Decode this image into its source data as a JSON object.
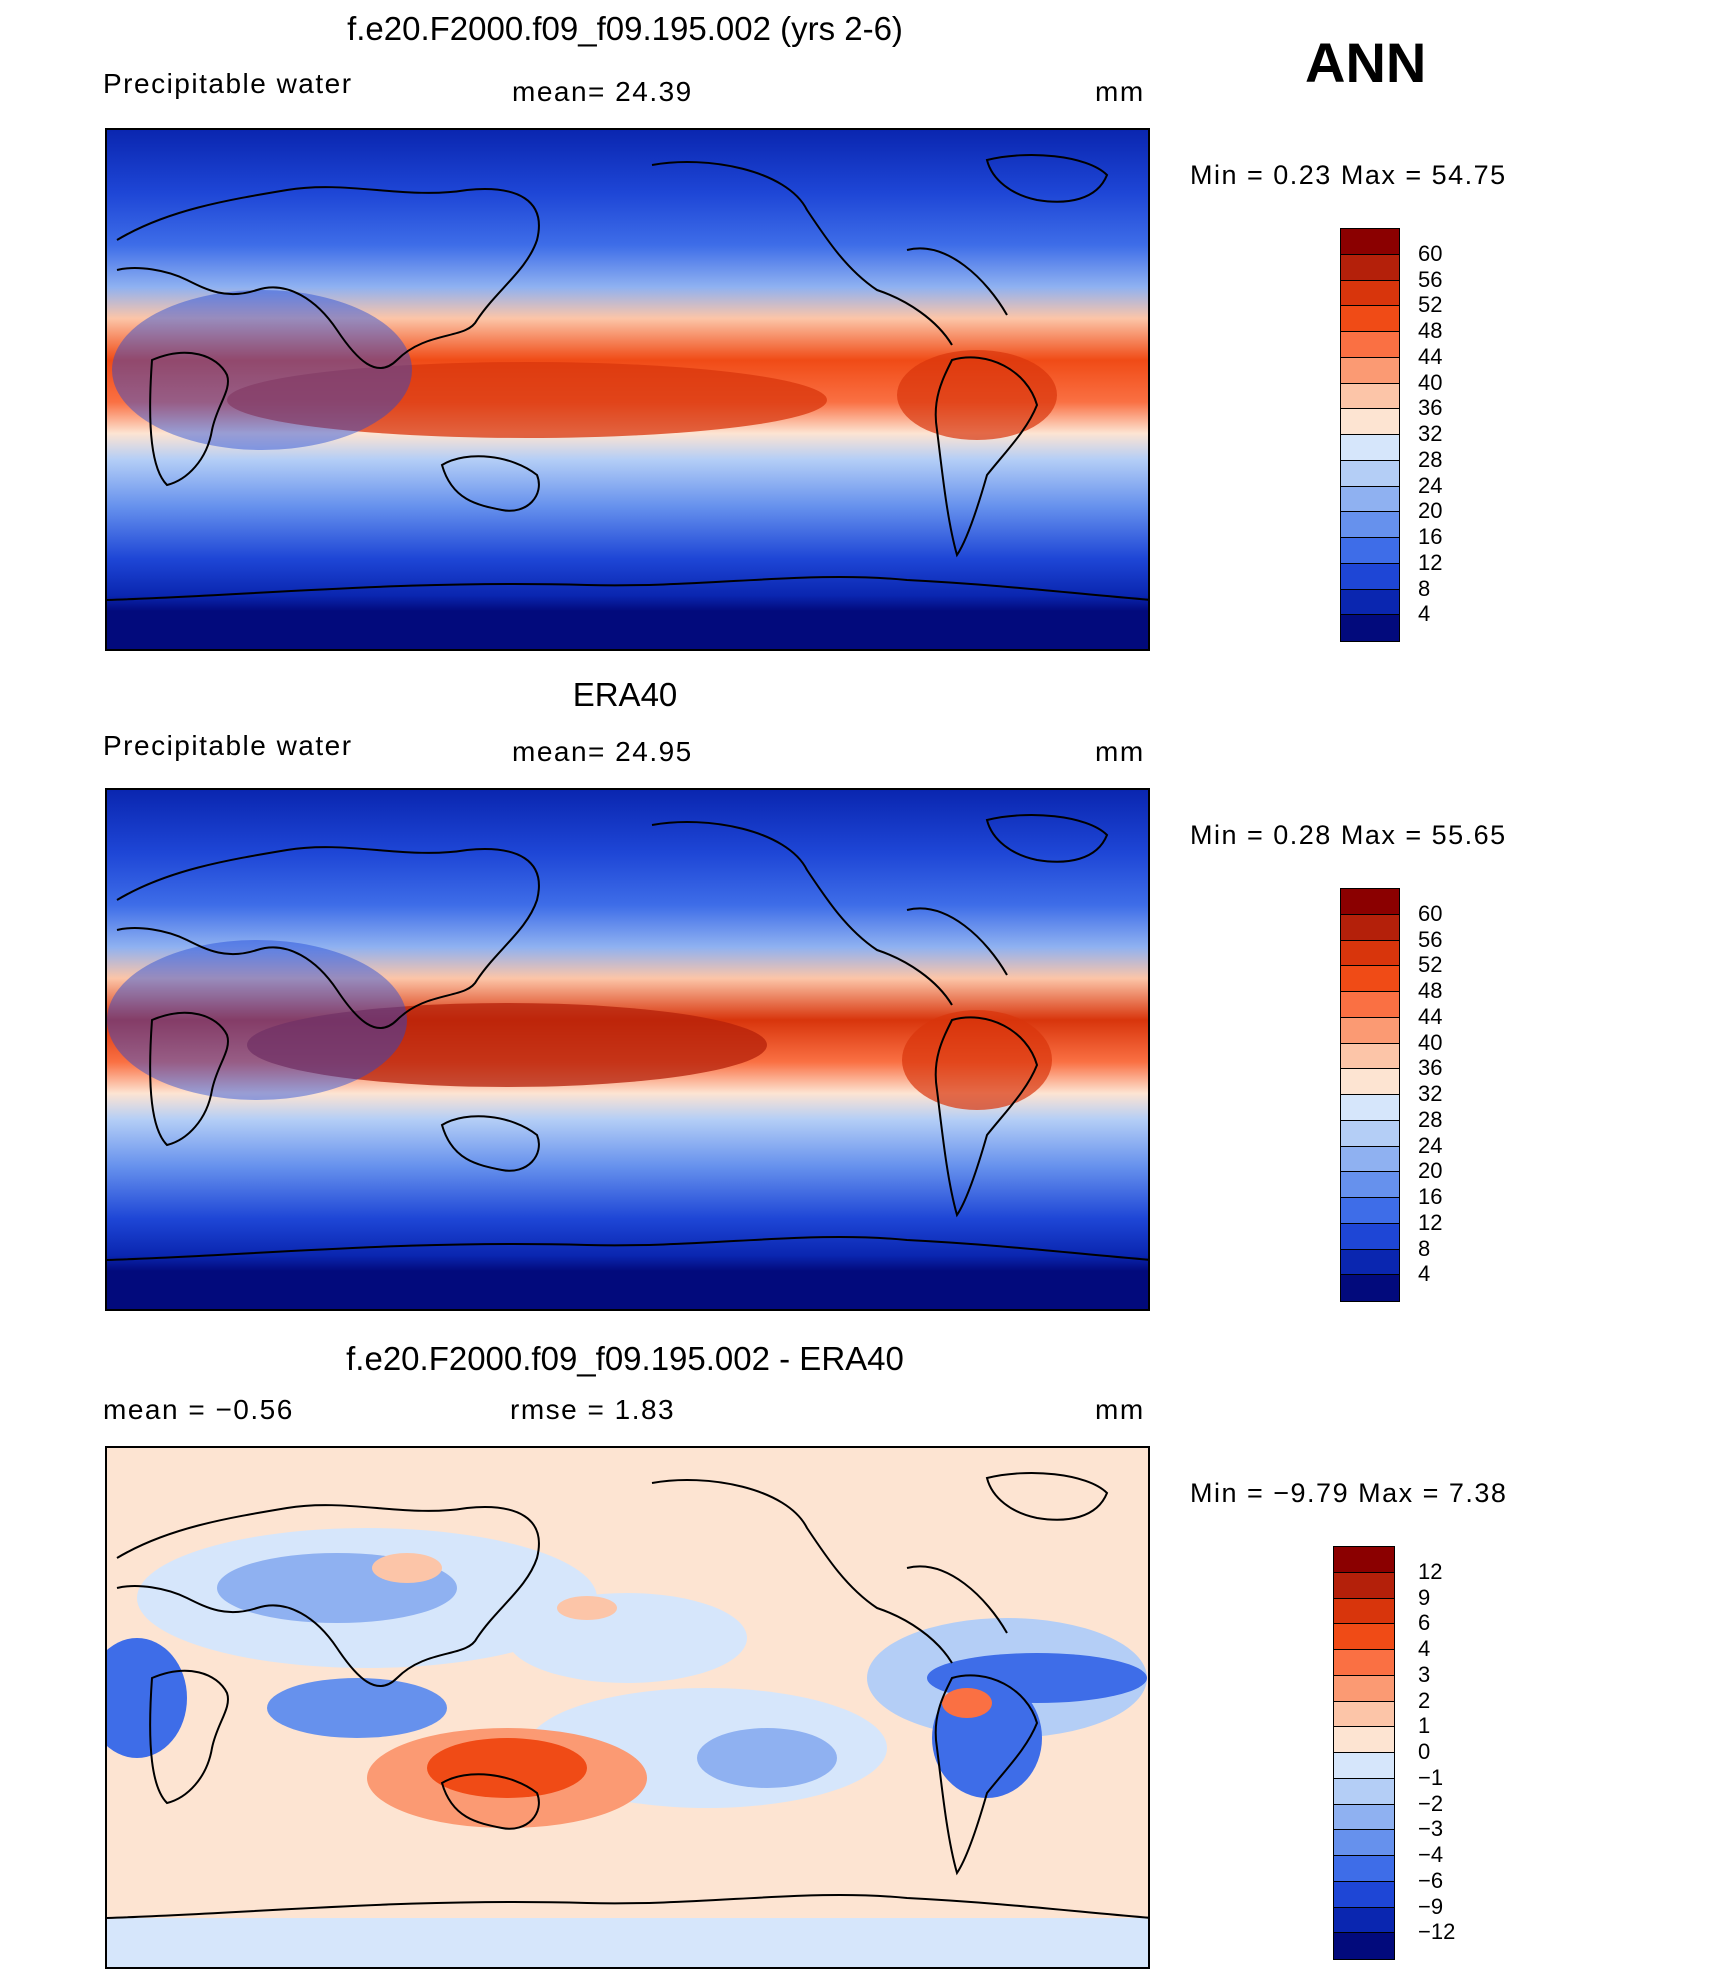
{
  "annual_label": "ANN",
  "panels": [
    {
      "title": "f.e20.F2000.f09_f09.195.002 (yrs 2-6)",
      "left_label": "Precipitable  water",
      "center_label": "mean=   24.39",
      "units": "mm",
      "minmax": "Min  =     0.23  Max  =     54.75",
      "colorbar": {
        "labels": [
          "60",
          "56",
          "52",
          "48",
          "44",
          "40",
          "36",
          "32",
          "28",
          "24",
          "20",
          "16",
          "12",
          "8",
          "4"
        ],
        "colors": [
          "#8b0000",
          "#b4200a",
          "#d8350c",
          "#f04b16",
          "#fa7043",
          "#fb9a73",
          "#fcc5a8",
          "#fde4d2",
          "#d6e6fb",
          "#b4cef6",
          "#8fb1f1",
          "#6691ed",
          "#3e6de8",
          "#1e46d6",
          "#0a26b0",
          "#020a7c"
        ]
      }
    },
    {
      "title": "ERA40",
      "left_label": "Precipitable  water",
      "center_label": "mean=   24.95",
      "units": "mm",
      "minmax": "Min  =     0.28  Max  =     55.65",
      "colorbar": {
        "labels": [
          "60",
          "56",
          "52",
          "48",
          "44",
          "40",
          "36",
          "32",
          "28",
          "24",
          "20",
          "16",
          "12",
          "8",
          "4"
        ],
        "colors": [
          "#8b0000",
          "#b4200a",
          "#d8350c",
          "#f04b16",
          "#fa7043",
          "#fb9a73",
          "#fcc5a8",
          "#fde4d2",
          "#d6e6fb",
          "#b4cef6",
          "#8fb1f1",
          "#6691ed",
          "#3e6de8",
          "#1e46d6",
          "#0a26b0",
          "#020a7c"
        ]
      }
    },
    {
      "title": "f.e20.F2000.f09_f09.195.002 - ERA40",
      "left_label": "mean  =    −0.56",
      "center_label": "rmse  =     1.83",
      "units": "mm",
      "minmax": "Min  =   −9.79  Max  =       7.38",
      "colorbar": {
        "labels": [
          "12",
          "9",
          "6",
          "4",
          "3",
          "2",
          "1",
          "0",
          "−1",
          "−2",
          "−3",
          "−4",
          "−6",
          "−9",
          "−12"
        ],
        "colors": [
          "#8b0000",
          "#b4200a",
          "#d8350c",
          "#f04b16",
          "#fa7043",
          "#fb9a73",
          "#fcc5a8",
          "#fde4d2",
          "#d6e6fb",
          "#b4cef6",
          "#8fb1f1",
          "#6691ed",
          "#3e6de8",
          "#1e46d6",
          "#0a26b0",
          "#020a7c"
        ]
      }
    }
  ]
}
